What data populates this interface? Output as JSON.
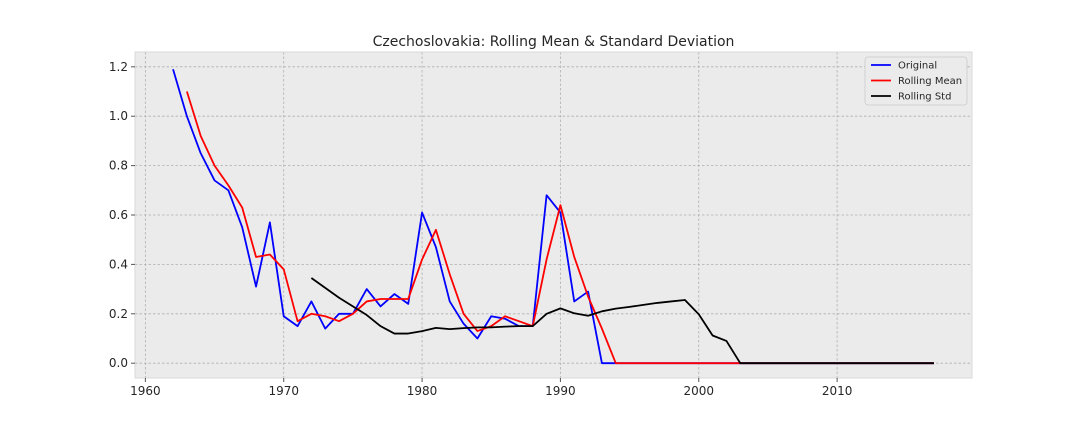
{
  "chart_data": {
    "type": "line",
    "title": "Czechoslovakia: Rolling Mean & Standard Deviation",
    "xlabel": "",
    "ylabel": "",
    "xlim": [
      1959.25,
      2019.75
    ],
    "ylim": [
      -0.06,
      1.26
    ],
    "xticks": [
      1960,
      1970,
      1980,
      1990,
      2000,
      2010
    ],
    "yticks": [
      0.0,
      0.2,
      0.4,
      0.6,
      0.8,
      1.0,
      1.2
    ],
    "grid": true,
    "legend_position": "top-right",
    "series": [
      {
        "name": "Original",
        "color": "#0000ff",
        "x": [
          1962,
          1963,
          1964,
          1965,
          1966,
          1967,
          1968,
          1969,
          1970,
          1971,
          1972,
          1973,
          1974,
          1975,
          1976,
          1977,
          1978,
          1979,
          1980,
          1981,
          1982,
          1983,
          1984,
          1985,
          1986,
          1987,
          1988,
          1989,
          1990,
          1991,
          1992,
          1993,
          1994,
          1995,
          1996,
          1997,
          1998,
          1999,
          2000,
          2001,
          2002,
          2003,
          2004,
          2005,
          2006,
          2007,
          2008,
          2009,
          2010,
          2011,
          2012,
          2013,
          2014,
          2015,
          2016,
          2017
        ],
        "y": [
          1.19,
          1.0,
          0.85,
          0.74,
          0.7,
          0.55,
          0.31,
          0.57,
          0.19,
          0.15,
          0.25,
          0.14,
          0.2,
          0.2,
          0.3,
          0.23,
          0.28,
          0.24,
          0.61,
          0.47,
          0.25,
          0.16,
          0.1,
          0.19,
          0.18,
          0.15,
          0.15,
          0.68,
          0.61,
          0.25,
          0.29,
          0.0,
          0.0,
          0.0,
          0.0,
          0.0,
          0.0,
          0.0,
          0.0,
          0.0,
          0.0,
          0.0,
          0.0,
          0.0,
          0.0,
          0.0,
          0.0,
          0.0,
          0.0,
          0.0,
          0.0,
          0.0,
          0.0,
          0.0,
          0.0,
          0.0
        ]
      },
      {
        "name": "Rolling Mean",
        "color": "#ff0000",
        "x": [
          1963,
          1964,
          1965,
          1966,
          1967,
          1968,
          1969,
          1970,
          1971,
          1972,
          1973,
          1974,
          1975,
          1976,
          1977,
          1978,
          1979,
          1980,
          1981,
          1982,
          1983,
          1984,
          1985,
          1986,
          1987,
          1988,
          1989,
          1990,
          1991,
          1992,
          1993,
          1994,
          1995,
          1996,
          1997,
          1998,
          1999,
          2000,
          2001,
          2002,
          2003,
          2004,
          2005,
          2006,
          2007,
          2008,
          2009,
          2010,
          2011,
          2012,
          2013,
          2014,
          2015,
          2016,
          2017
        ],
        "y": [
          1.1,
          0.92,
          0.8,
          0.72,
          0.63,
          0.43,
          0.44,
          0.38,
          0.17,
          0.2,
          0.19,
          0.17,
          0.2,
          0.25,
          0.26,
          0.26,
          0.26,
          0.42,
          0.54,
          0.36,
          0.2,
          0.13,
          0.15,
          0.19,
          0.17,
          0.15,
          0.42,
          0.64,
          0.43,
          0.27,
          0.14,
          0.0,
          0.0,
          0.0,
          0.0,
          0.0,
          0.0,
          0.0,
          0.0,
          0.0,
          0.0,
          0.0,
          0.0,
          0.0,
          0.0,
          0.0,
          0.0,
          0.0,
          0.0,
          0.0,
          0.0,
          0.0,
          0.0,
          0.0,
          0.0
        ]
      },
      {
        "name": "Rolling Std",
        "color": "#000000",
        "x": [
          1972,
          1973,
          1974,
          1975,
          1976,
          1977,
          1978,
          1979,
          1980,
          1981,
          1982,
          1983,
          1984,
          1985,
          1986,
          1987,
          1988,
          1989,
          1990,
          1991,
          1992,
          1993,
          1994,
          1995,
          1996,
          1997,
          1998,
          1999,
          2000,
          2001,
          2002,
          2003,
          2004,
          2005,
          2006,
          2007,
          2008,
          2009,
          2010,
          2011,
          2012,
          2013,
          2014,
          2015,
          2016,
          2017
        ],
        "y": [
          0.345,
          0.305,
          0.265,
          0.23,
          0.195,
          0.15,
          0.12,
          0.12,
          0.13,
          0.143,
          0.138,
          0.142,
          0.145,
          0.145,
          0.148,
          0.15,
          0.15,
          0.2,
          0.222,
          0.202,
          0.192,
          0.21,
          0.221,
          0.228,
          0.236,
          0.244,
          0.25,
          0.256,
          0.198,
          0.112,
          0.09,
          0.0,
          0.0,
          0.0,
          0.0,
          0.0,
          0.0,
          0.0,
          0.0,
          0.0,
          0.0,
          0.0,
          0.0,
          0.0,
          0.0,
          0.0
        ]
      }
    ]
  }
}
